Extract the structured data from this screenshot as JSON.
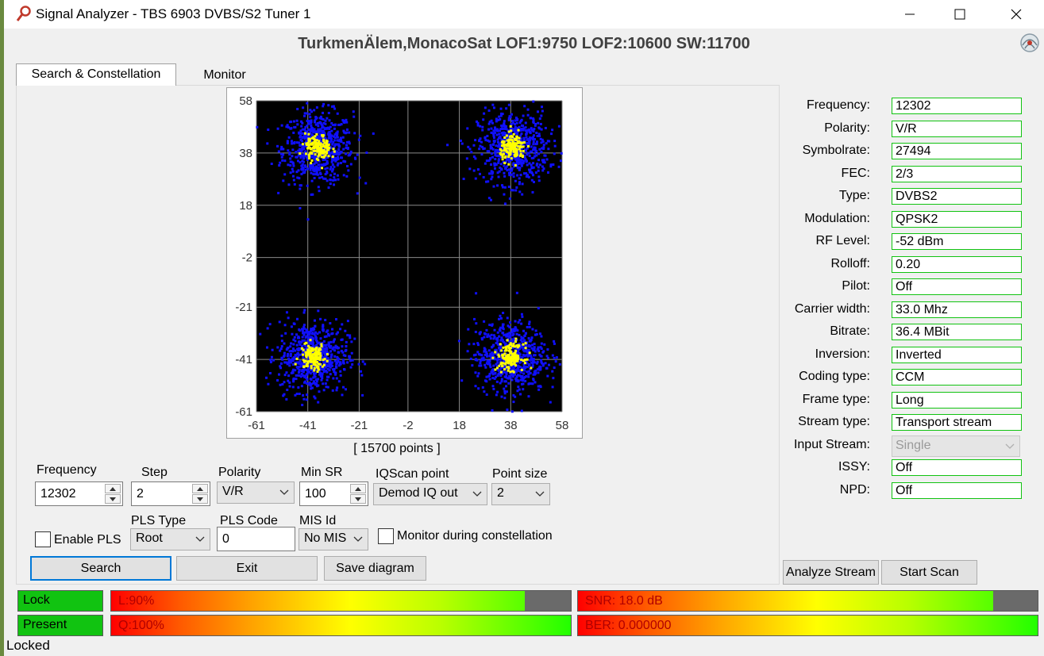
{
  "window": {
    "title": "Signal Analyzer - TBS 6903 DVBS/S2 Tuner 1",
    "header": "TurkmenÄlem,MonacoSat LOF1:9750 LOF2:10600 SW:11700"
  },
  "tabs": [
    {
      "label": "Search & Constellation",
      "active": true
    },
    {
      "label": "Monitor",
      "active": false
    }
  ],
  "chart_data": {
    "type": "scatter",
    "xlim": [
      -61,
      58
    ],
    "ylim": [
      -61,
      58
    ],
    "xticks": [
      "-61",
      "-41",
      "-21",
      "-2",
      "18",
      "38",
      "58"
    ],
    "yticks": [
      "58",
      "38",
      "18",
      "-2",
      "-21",
      "-41",
      "-61"
    ],
    "grid": true,
    "background": "#000000",
    "series": [
      {
        "color": "#1010ff",
        "cluster_centers": [
          [
            -37,
            40
          ],
          [
            39,
            40
          ],
          [
            -39,
            -40
          ],
          [
            38,
            -40
          ]
        ],
        "spread": 11
      },
      {
        "color": "#ffff00",
        "cluster_centers": [
          [
            -37,
            40
          ],
          [
            39,
            40
          ],
          [
            -39,
            -40
          ],
          [
            38,
            -40
          ]
        ],
        "spread": 4
      }
    ],
    "points_label": "[ 15700 points ]"
  },
  "controls": {
    "frequency": {
      "label": "Frequency",
      "value": "12302"
    },
    "step": {
      "label": "Step",
      "value": "2"
    },
    "polarity": {
      "label": "Polarity",
      "value": "V/R"
    },
    "min_sr": {
      "label": "Min SR",
      "value": "100"
    },
    "iqscan": {
      "label": "IQScan point",
      "value": "Demod IQ out"
    },
    "point_size": {
      "label": "Point size",
      "value": "2"
    },
    "enable_pls": {
      "label": "Enable PLS",
      "checked": false
    },
    "pls_type": {
      "label": "PLS Type",
      "value": "Root"
    },
    "pls_code": {
      "label": "PLS Code",
      "value": "0"
    },
    "mis_id": {
      "label": "MIS Id",
      "value": "No MIS"
    },
    "monitor_constellation": {
      "label": "Monitor during constellation",
      "checked": false
    }
  },
  "buttons": {
    "search": "Search",
    "exit": "Exit",
    "save_diagram": "Save diagram",
    "analyze_stream": "Analyze Stream",
    "start_scan": "Start Scan"
  },
  "info": [
    {
      "label": "Frequency:",
      "value": "12302"
    },
    {
      "label": "Polarity:",
      "value": "V/R"
    },
    {
      "label": "Symbolrate:",
      "value": "27494"
    },
    {
      "label": "FEC:",
      "value": "2/3"
    },
    {
      "label": "Type:",
      "value": "DVBS2"
    },
    {
      "label": "Modulation:",
      "value": "QPSK2"
    },
    {
      "label": "RF Level:",
      "value": "-52 dBm"
    },
    {
      "label": "Rolloff:",
      "value": "0.20"
    },
    {
      "label": "Pilot:",
      "value": "Off"
    },
    {
      "label": "Carrier width:",
      "value": "33.0 Mhz"
    },
    {
      "label": "Bitrate:",
      "value": "36.4 MBit"
    },
    {
      "label": "Inversion:",
      "value": "Inverted"
    },
    {
      "label": "Coding type:",
      "value": "CCM"
    },
    {
      "label": "Frame type:",
      "value": "Long"
    },
    {
      "label": "Stream type:",
      "value": "Transport stream"
    },
    {
      "label": "Input Stream:",
      "value": "Single"
    },
    {
      "label": "ISSY:",
      "value": "Off"
    },
    {
      "label": "NPD:",
      "value": "Off"
    }
  ],
  "status": {
    "lock": "Lock",
    "present": "Present",
    "level": {
      "text": "L:90%",
      "fraction": 0.9
    },
    "quality": {
      "text": "Q:100%",
      "fraction": 1.0
    },
    "snr": {
      "text": "SNR: 18.0 dB",
      "fraction": 0.904
    },
    "ber": {
      "text": "BER: 0.000000",
      "fraction": 1.0
    },
    "statusbar": "Locked"
  },
  "colors": {
    "accent": "#0078d7",
    "ok_green": "#11c311"
  }
}
